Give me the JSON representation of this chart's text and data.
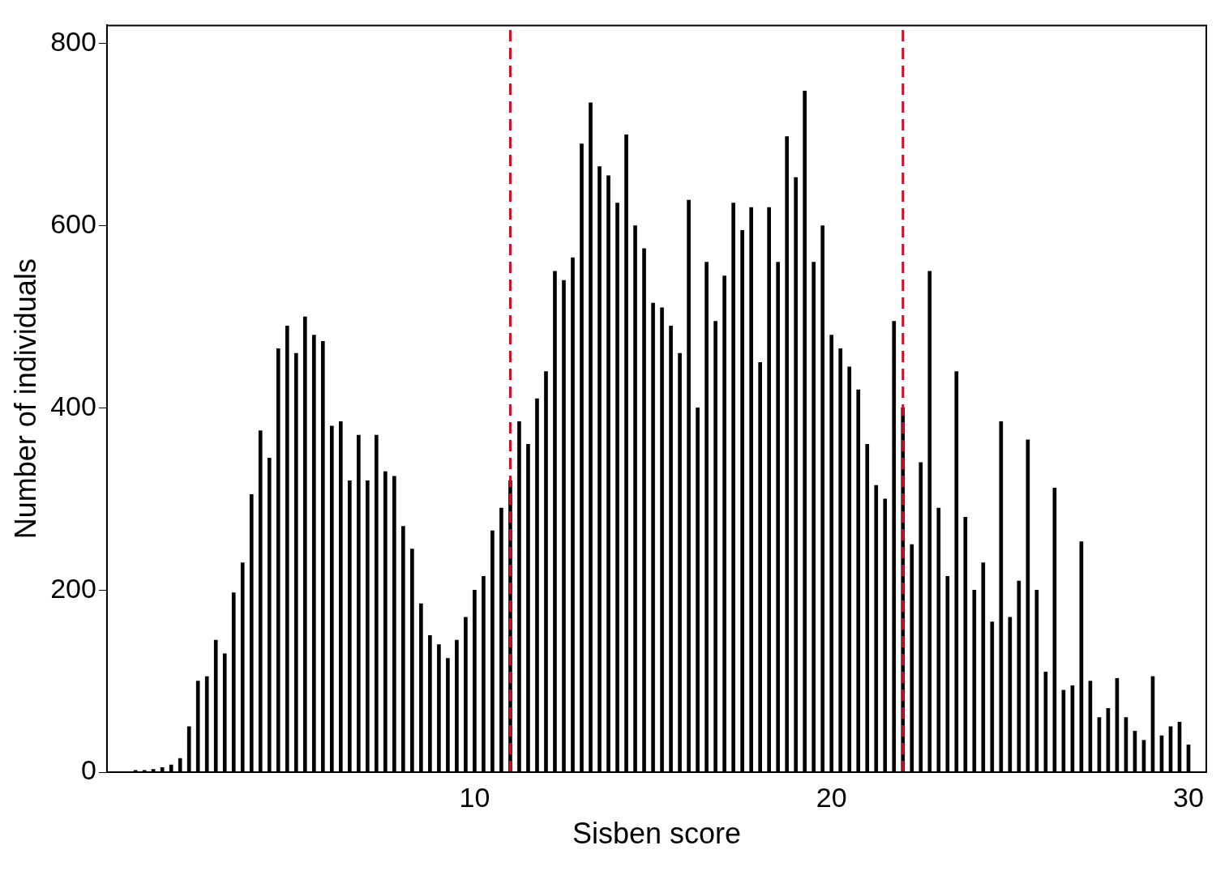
{
  "chart_data": {
    "type": "bar",
    "xlabel": "Sisben score",
    "ylabel": "Number of individuals",
    "color": "#000000",
    "x": [
      0.5,
      0.75,
      1.0,
      1.25,
      1.5,
      1.75,
      2.0,
      2.25,
      2.5,
      2.75,
      3.0,
      3.25,
      3.5,
      3.75,
      4.0,
      4.25,
      4.5,
      4.75,
      5.0,
      5.25,
      5.5,
      5.75,
      6.0,
      6.25,
      6.5,
      6.75,
      7.0,
      7.25,
      7.5,
      7.75,
      8.0,
      8.25,
      8.5,
      8.75,
      9.0,
      9.25,
      9.5,
      9.75,
      10.0,
      10.25,
      10.5,
      10.75,
      11.0,
      11.25,
      11.5,
      11.75,
      12.0,
      12.25,
      12.5,
      12.75,
      13.0,
      13.25,
      13.5,
      13.75,
      14.0,
      14.25,
      14.5,
      14.75,
      15.0,
      15.25,
      15.5,
      15.75,
      16.0,
      16.25,
      16.5,
      16.75,
      17.0,
      17.25,
      17.5,
      17.75,
      18.0,
      18.25,
      18.5,
      18.75,
      19.0,
      19.25,
      19.5,
      19.75,
      20.0,
      20.25,
      20.5,
      20.75,
      21.0,
      21.25,
      21.5,
      21.75,
      22.0,
      22.25,
      22.5,
      22.75,
      23.0,
      23.25,
      23.5,
      23.75,
      24.0,
      24.25,
      24.5,
      24.75,
      25.0,
      25.25,
      25.5,
      25.75,
      26.0,
      26.25,
      26.5,
      26.75,
      27.0,
      27.25,
      27.5,
      27.75,
      28.0,
      28.25,
      28.5,
      28.75,
      29.0,
      29.25,
      29.5,
      29.75,
      30.0
    ],
    "values": [
      2,
      2,
      3,
      5,
      8,
      15,
      50,
      100,
      105,
      145,
      130,
      197,
      230,
      305,
      375,
      345,
      465,
      490,
      460,
      500,
      480,
      473,
      380,
      385,
      320,
      370,
      320,
      370,
      330,
      325,
      270,
      245,
      185,
      150,
      140,
      125,
      145,
      170,
      200,
      215,
      265,
      290,
      320,
      385,
      360,
      410,
      440,
      550,
      540,
      565,
      690,
      735,
      665,
      655,
      625,
      700,
      600,
      575,
      515,
      510,
      490,
      460,
      628,
      400,
      560,
      495,
      545,
      625,
      595,
      620,
      450,
      620,
      560,
      698,
      653,
      748,
      560,
      600,
      480,
      465,
      445,
      420,
      360,
      315,
      300,
      495,
      400,
      250,
      340,
      550,
      290,
      215,
      440,
      280,
      200,
      230,
      165,
      385,
      170,
      210,
      365,
      200,
      110,
      312,
      90,
      95,
      253,
      100,
      60,
      70,
      103,
      60,
      45,
      35,
      105,
      40,
      50,
      55,
      30
    ],
    "xlim": [
      -0.3,
      30.5
    ],
    "xticks": [
      10,
      20,
      30
    ],
    "ylim": [
      0,
      820
    ],
    "yticks": [
      0,
      200,
      400,
      600,
      800
    ],
    "grid": false,
    "ref_lines": [
      {
        "axis": "x",
        "value": 11,
        "color": "#c8102e",
        "line_style": "dashed"
      },
      {
        "axis": "x",
        "value": 22,
        "color": "#c8102e",
        "line_style": "dashed"
      }
    ]
  }
}
